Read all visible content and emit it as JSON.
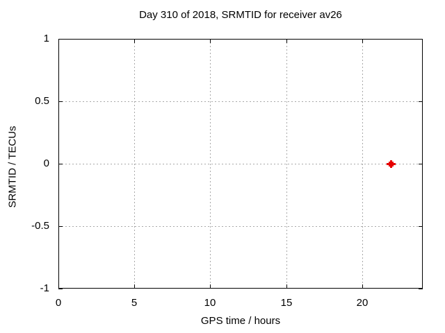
{
  "colors": {
    "background": "#ffffff",
    "axis": "#000000",
    "grid": "#a8a8a8",
    "text": "#000000",
    "marker": "#e60000"
  },
  "chart_data": {
    "type": "scatter",
    "title": "Day 310 of 2018, SRMTID for receiver av26",
    "xlabel": "GPS time / hours",
    "ylabel": "SRMTID / TECUs",
    "xlim": [
      0,
      24
    ],
    "ylim": [
      -1,
      1
    ],
    "grid": true,
    "legend": "none",
    "xticks": [
      {
        "value": 0,
        "label": "0"
      },
      {
        "value": 5,
        "label": "5"
      },
      {
        "value": 10,
        "label": "10"
      },
      {
        "value": 15,
        "label": "15"
      },
      {
        "value": 20,
        "label": "20"
      }
    ],
    "yticks": [
      {
        "value": -1,
        "label": "-1"
      },
      {
        "value": -0.5,
        "label": "-0.5"
      },
      {
        "value": 0,
        "label": "0"
      },
      {
        "value": 0.5,
        "label": "0.5"
      },
      {
        "value": 1,
        "label": "1"
      }
    ],
    "series": [
      {
        "name": "SRMTID",
        "marker": "plus-square",
        "color": "#e60000",
        "points": [
          {
            "x": 21.9,
            "y": 0.0
          }
        ]
      }
    ]
  }
}
